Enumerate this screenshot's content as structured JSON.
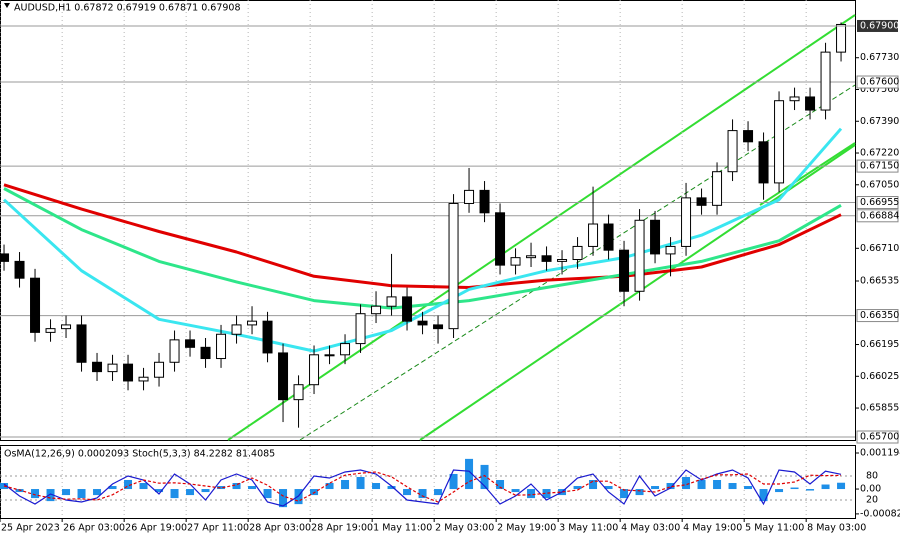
{
  "chart_data": [
    {
      "type": "candlestick",
      "title": "AUDUSD,H1 0.67872 0.67919 0.67871 0.67908",
      "xlim": [
        -0.26,
        54.9
      ],
      "xticks": [
        {
          "value": -0.26,
          "label": "25 Apr 2023"
        },
        {
          "value": 3.75,
          "label": "26 Apr 03:00"
        },
        {
          "value": 7.75,
          "label": "26 Apr 19:00"
        },
        {
          "value": 11.75,
          "label": "27 Apr 11:00"
        },
        {
          "value": 15.75,
          "label": "28 Apr 03:00"
        },
        {
          "value": 19.75,
          "label": "28 Apr 19:00"
        },
        {
          "value": 23.75,
          "label": "1 May 11:00"
        },
        {
          "value": 27.75,
          "label": "2 May 03:00"
        },
        {
          "value": 31.75,
          "label": "2 May 19:00"
        },
        {
          "value": 35.75,
          "label": "3 May 11:00"
        },
        {
          "value": 39.75,
          "label": "4 May 03:00"
        },
        {
          "value": 43.75,
          "label": "4 May 19:00"
        },
        {
          "value": 47.75,
          "label": "5 May 11:00"
        },
        {
          "value": 51.75,
          "label": "8 May 03:00"
        }
      ],
      "ylim": [
        0.65684,
        0.68039
      ],
      "yticks": [
        {
          "value": 0.6773,
          "label": "0.67730"
        },
        {
          "value": 0.6756,
          "label": "0.67560"
        },
        {
          "value": 0.6739,
          "label": "0.67390"
        },
        {
          "value": 0.6722,
          "label": "0.67220"
        },
        {
          "value": 0.6705,
          "label": "0.67050"
        },
        {
          "value": 0.6671,
          "label": "0.66710"
        },
        0.66535,
        0.66195,
        0.66025,
        0.65855
      ],
      "levels": [
        {
          "value": 0.676,
          "label": "0.67600"
        },
        {
          "value": 0.6715,
          "label": "0.67150"
        },
        0.66955,
        0.66884,
        {
          "value": 0.6635,
          "label": "0.66350"
        },
        {
          "value": 0.657,
          "label": "0.65700"
        }
      ],
      "current_price": {
        "value": 0.679,
        "label": "0.67900"
      },
      "open": [
        0.6668,
        0.6664,
        0.6655,
        0.6626,
        0.6628,
        0.663,
        0.661,
        0.6605,
        0.6609,
        0.66,
        0.6602,
        0.661,
        0.6622,
        0.6618,
        0.6612,
        0.6625,
        0.663,
        0.6632,
        0.6615,
        0.659,
        0.6598,
        0.6614,
        0.6614,
        0.662,
        0.6636,
        0.664,
        0.6645,
        0.6632,
        0.663,
        0.6628,
        0.6695,
        0.6702,
        0.669,
        0.6662,
        0.6666,
        0.6667,
        0.6664,
        0.6665,
        0.6672,
        0.6684,
        0.667,
        0.6648,
        0.6686,
        0.6668,
        0.6672,
        0.6698,
        0.6694,
        0.6712,
        0.6734,
        0.6728,
        0.6706,
        0.675,
        0.6752,
        0.6745,
        0.6776
      ],
      "high": [
        0.6673,
        0.6669,
        0.666,
        0.6633,
        0.6635,
        0.6635,
        0.6615,
        0.6614,
        0.6614,
        0.6607,
        0.6615,
        0.6627,
        0.6627,
        0.6623,
        0.663,
        0.6635,
        0.664,
        0.6637,
        0.662,
        0.6603,
        0.6619,
        0.6619,
        0.6625,
        0.6641,
        0.6648,
        0.6668,
        0.665,
        0.6637,
        0.6635,
        0.67,
        0.6714,
        0.6707,
        0.6695,
        0.6671,
        0.6674,
        0.6672,
        0.667,
        0.6677,
        0.6704,
        0.6689,
        0.6675,
        0.6692,
        0.6691,
        0.6677,
        0.6706,
        0.6703,
        0.6717,
        0.674,
        0.6739,
        0.6733,
        0.6755,
        0.6757,
        0.6757,
        0.6781,
        0.67919
      ],
      "low": [
        0.6659,
        0.665,
        0.6621,
        0.6621,
        0.6623,
        0.6605,
        0.66,
        0.66,
        0.6595,
        0.6595,
        0.6597,
        0.6605,
        0.6613,
        0.6607,
        0.6607,
        0.662,
        0.6625,
        0.661,
        0.6578,
        0.6575,
        0.6593,
        0.6609,
        0.6609,
        0.6615,
        0.6631,
        0.6635,
        0.6627,
        0.6625,
        0.662,
        0.6623,
        0.669,
        0.6685,
        0.6657,
        0.6657,
        0.6661,
        0.6659,
        0.6657,
        0.666,
        0.6667,
        0.6665,
        0.664,
        0.6643,
        0.6663,
        0.6656,
        0.6667,
        0.6689,
        0.6689,
        0.6707,
        0.6723,
        0.6697,
        0.6701,
        0.6745,
        0.674,
        0.674,
        0.6771
      ],
      "close": [
        0.6664,
        0.6655,
        0.6626,
        0.6628,
        0.663,
        0.661,
        0.6605,
        0.6609,
        0.66,
        0.6602,
        0.661,
        0.6622,
        0.6618,
        0.6612,
        0.6625,
        0.663,
        0.6632,
        0.6615,
        0.659,
        0.6598,
        0.6614,
        0.6614,
        0.662,
        0.6636,
        0.664,
        0.6645,
        0.6632,
        0.663,
        0.6628,
        0.6695,
        0.6702,
        0.669,
        0.6662,
        0.6666,
        0.6667,
        0.6664,
        0.6665,
        0.6672,
        0.6684,
        0.667,
        0.6648,
        0.6686,
        0.6668,
        0.6672,
        0.6698,
        0.6694,
        0.6712,
        0.6734,
        0.6728,
        0.6706,
        0.675,
        0.6752,
        0.6745,
        0.6776,
        0.67908
      ],
      "series": [
        {
          "color": "#e00000",
          "x": [
            0,
            5,
            10,
            15,
            20,
            25,
            30,
            35,
            40,
            45,
            50,
            54
          ],
          "values": [
            0.6705,
            0.6692,
            0.668,
            0.6669,
            0.6656,
            0.6651,
            0.665,
            0.6654,
            0.6656,
            0.6661,
            0.6673,
            0.6689
          ]
        },
        {
          "color": "#2ee68a",
          "x": [
            0,
            5,
            10,
            15,
            20,
            25,
            30,
            35,
            40,
            45,
            50,
            54
          ],
          "values": [
            0.6703,
            0.6681,
            0.6664,
            0.6653,
            0.6643,
            0.6639,
            0.6643,
            0.665,
            0.6657,
            0.6664,
            0.6675,
            0.6694
          ]
        },
        {
          "color": "#3ae6f0",
          "x": [
            0,
            5,
            10,
            15,
            20,
            25,
            30,
            35,
            40,
            45,
            50,
            54
          ],
          "values": [
            0.6697,
            0.6659,
            0.6633,
            0.6625,
            0.6616,
            0.6627,
            0.6649,
            0.6659,
            0.6666,
            0.6678,
            0.6697,
            0.6735
          ]
        }
      ]
    },
    {
      "type": "oscillator",
      "title": "OsMA(12,26,9) 0.0002093 Stoch(5,3,3) 84.2282 81.4085",
      "ylim": [
        -0.00096,
        0.00146
      ],
      "yticks": [
        0.0011945,
        {
          "value": 0,
          "label": "0.00"
        },
        -0.000824
      ],
      "y2lim": [
        -25,
        157.5
      ],
      "y2ticks": [
        80,
        20
      ],
      "series": [
        {
          "style": "bar",
          "color": "#1e8fe8",
          "values": [
            0.0002,
            -0.0001,
            -0.0003,
            -0.0004,
            -0.0002,
            -0.0003,
            -0.0002,
            0.0001,
            0.0003,
            0.0002,
            -0.0001,
            -0.0003,
            -0.0002,
            -0.0001,
            0.0001,
            0.0002,
            0.0001,
            -0.0003,
            -0.0006,
            -0.0005,
            -0.0002,
            0.0002,
            0.0003,
            0.0004,
            0.0002,
            0.0001,
            -0.0002,
            -0.0003,
            -0.0002,
            0.0005,
            0.001,
            0.0008,
            0.0003,
            -0.0001,
            -0.0003,
            -0.0003,
            -0.0002,
            0.0001,
            0.0003,
            0.0001,
            -0.0003,
            -0.0002,
            0.0001,
            0.0002,
            0.0004,
            0.0003,
            0.0003,
            0.0002,
            0.0001,
            -0.0004,
            -0.0001,
            5e-05,
            -5e-05,
            0.00015,
            0.0002093
          ]
        },
        {
          "style": "solid",
          "axis": "y2",
          "color": "#1a1ad0",
          "values": [
            60,
            30,
            10,
            35,
            20,
            15,
            25,
            60,
            80,
            70,
            35,
            85,
            60,
            20,
            70,
            85,
            70,
            15,
            5,
            30,
            80,
            75,
            90,
            95,
            85,
            55,
            20,
            15,
            10,
            95,
            92,
            55,
            10,
            30,
            60,
            20,
            40,
            75,
            85,
            40,
            10,
            80,
            30,
            50,
            95,
            70,
            85,
            95,
            75,
            10,
            95,
            90,
            60,
            92,
            84.2282
          ]
        },
        {
          "style": "dashed",
          "axis": "y2",
          "color": "#e00000",
          "values": [
            55,
            45,
            33,
            25,
            22,
            23,
            20,
            33,
            55,
            70,
            62,
            63,
            60,
            55,
            50,
            58,
            75,
            57,
            30,
            17,
            38,
            62,
            82,
            87,
            90,
            78,
            53,
            30,
            15,
            40,
            66,
            81,
            52,
            32,
            33,
            37,
            40,
            45,
            67,
            67,
            45,
            43,
            40,
            53,
            58,
            72,
            83,
            83,
            85,
            60,
            60,
            65,
            82,
            81,
            81.4085
          ]
        }
      ]
    }
  ]
}
